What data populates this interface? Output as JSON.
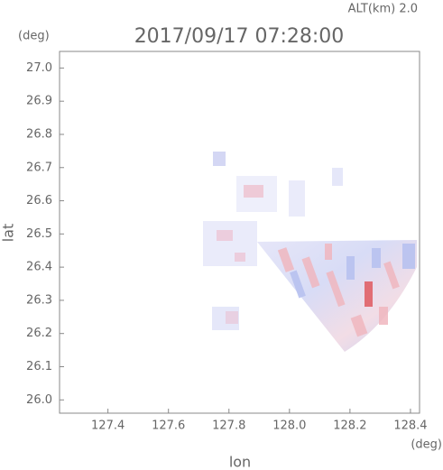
{
  "chart_data": {
    "type": "radar-field",
    "title": "2017/09/17 07:28:00",
    "altitude_label": "ALT(km) 2.0",
    "x_label": "lon",
    "y_label": "lat",
    "x_unit": "(deg)",
    "y_unit": "(deg)",
    "xlim": [
      127.24,
      128.43
    ],
    "ylim": [
      25.96,
      27.05
    ],
    "xticks": [
      {
        "value": 127.4,
        "label": "127.4"
      },
      {
        "value": 127.6,
        "label": "127.6"
      },
      {
        "value": 127.8,
        "label": "127.8"
      },
      {
        "value": 128.0,
        "label": "128.0"
      },
      {
        "value": 128.2,
        "label": "128.2"
      },
      {
        "value": 128.4,
        "label": "128.4"
      }
    ],
    "yticks": [
      {
        "value": 26.0,
        "label": "26.0"
      },
      {
        "value": 26.1,
        "label": "26.1"
      },
      {
        "value": 26.2,
        "label": "26.2"
      },
      {
        "value": 26.3,
        "label": "26.3"
      },
      {
        "value": 26.4,
        "label": "26.4"
      },
      {
        "value": 26.5,
        "label": "26.5"
      },
      {
        "value": 26.6,
        "label": "26.6"
      },
      {
        "value": 26.7,
        "label": "26.7"
      },
      {
        "value": 26.8,
        "label": "26.8"
      },
      {
        "value": 26.9,
        "label": "26.9"
      },
      {
        "value": 27.0,
        "label": "27.0"
      }
    ]
  }
}
